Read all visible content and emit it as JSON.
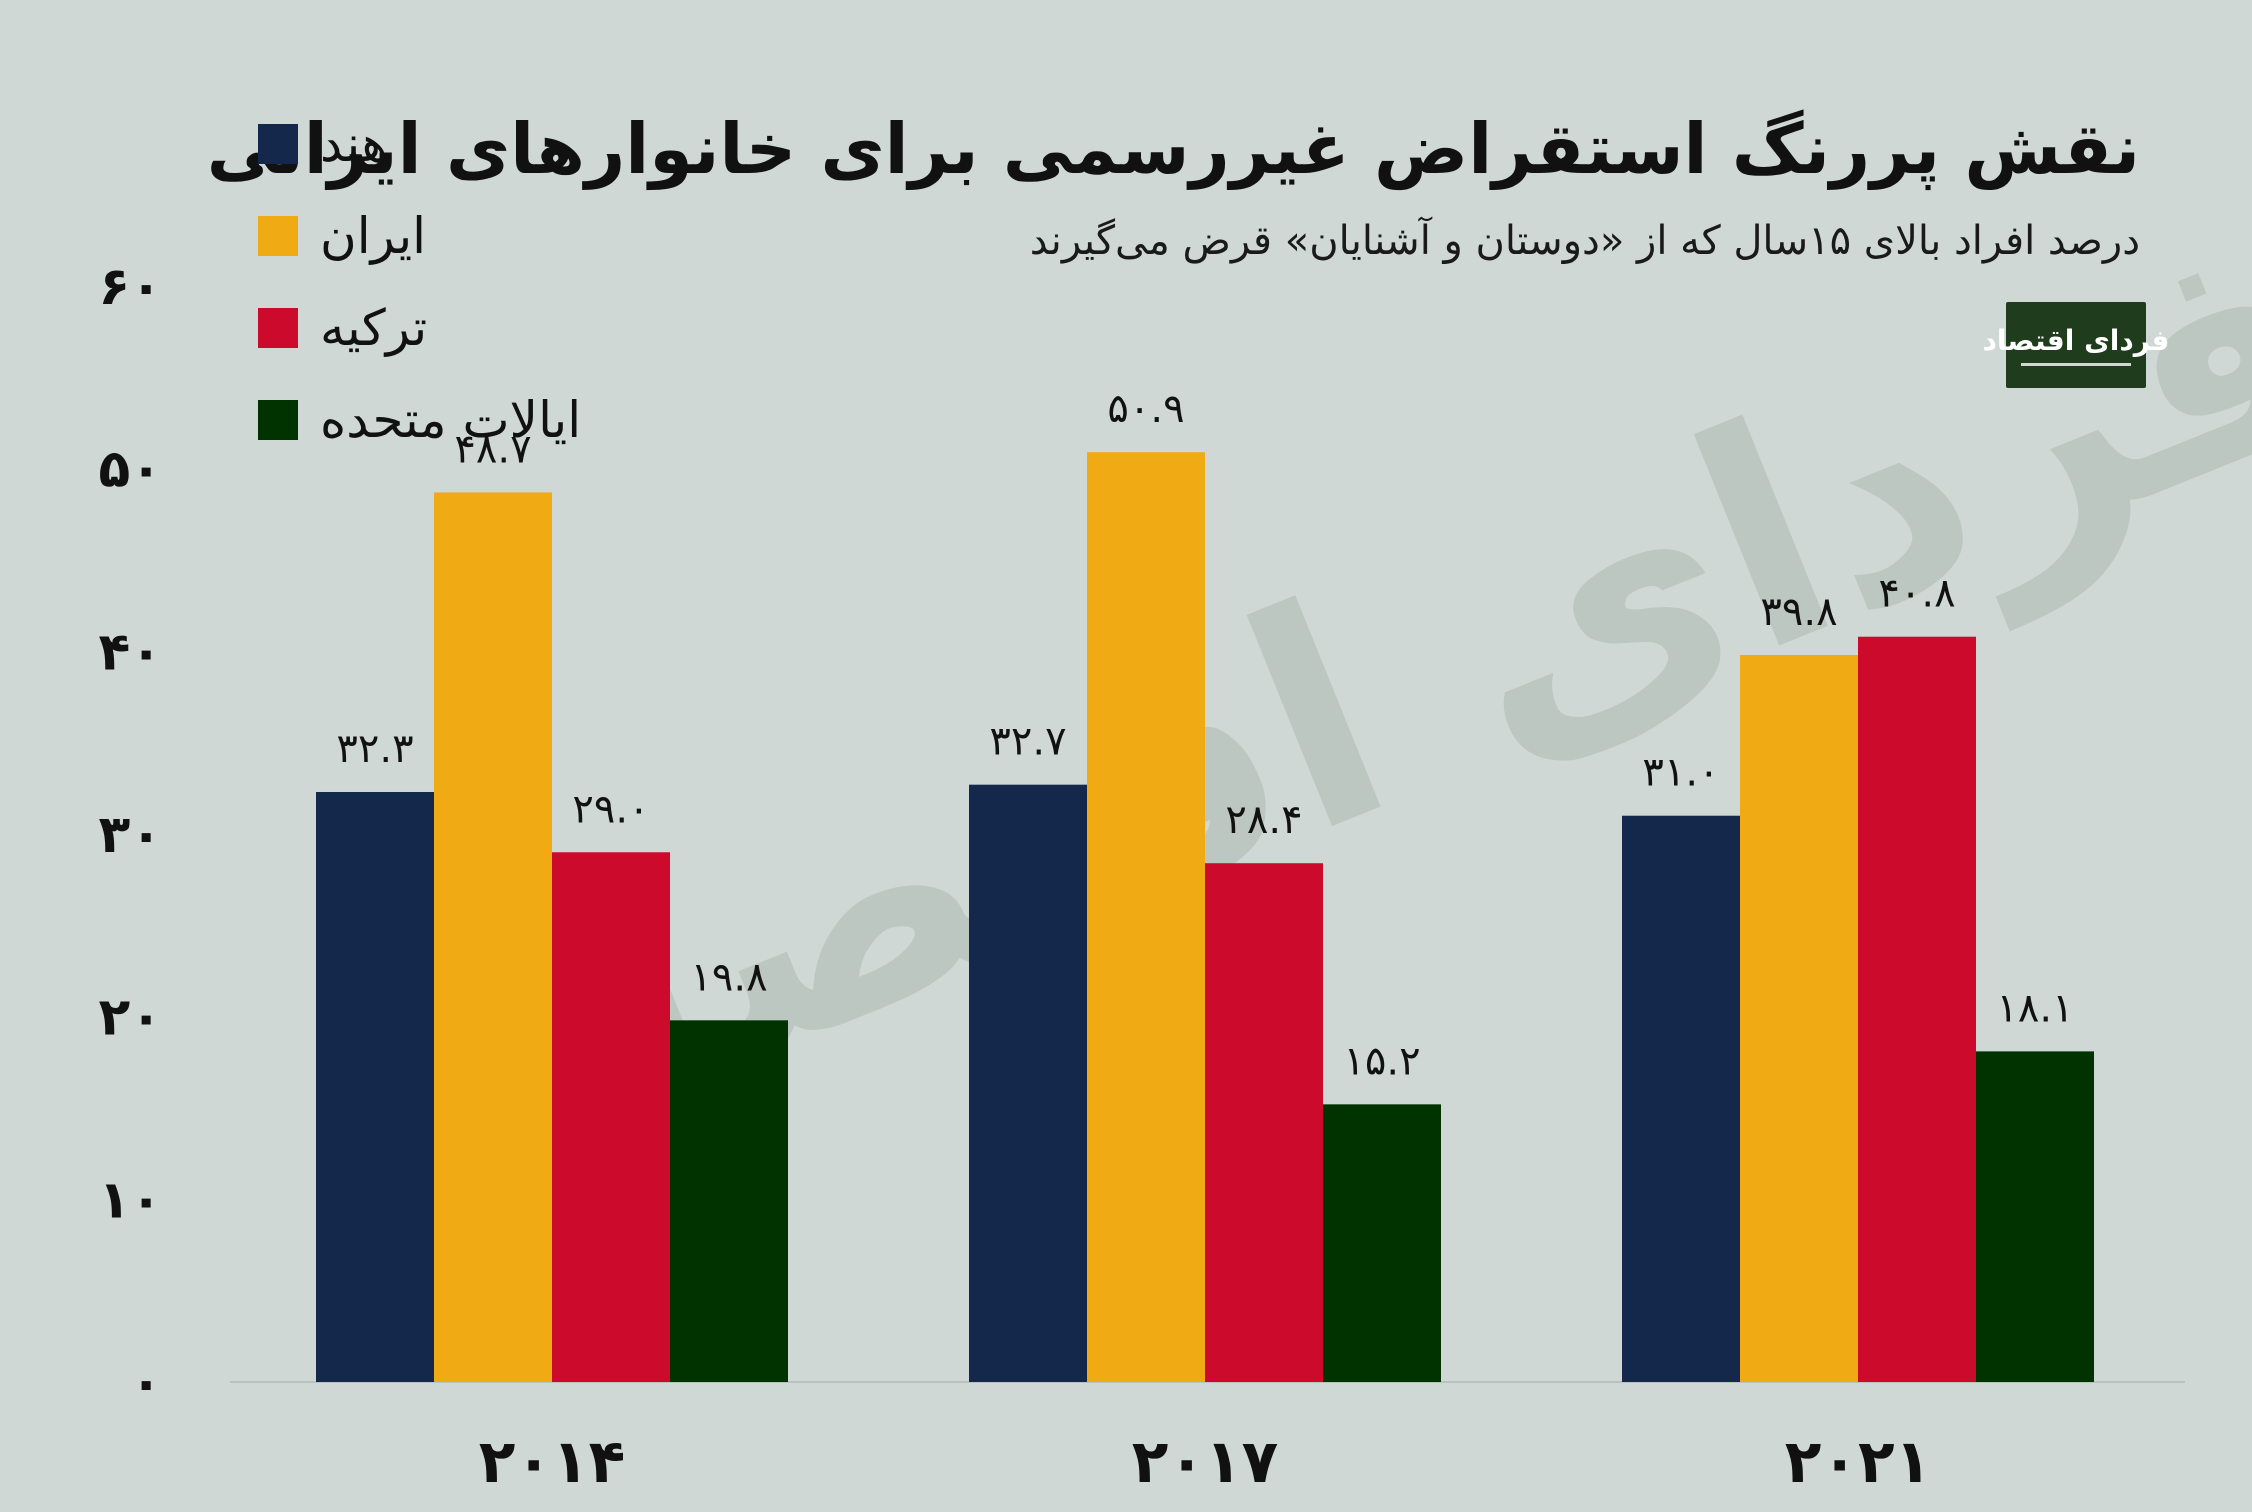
{
  "title": "نقش پررنگ استقراض غیررسمی برای خانوارهای ایرانی",
  "subtitle": "درصد افراد بالای ۱۵سال که از «دوستان و آشنایان» قرض می‌گیرند",
  "logo": {
    "text": "فردای اقتصاد"
  },
  "watermark": "فردای اقتصاد",
  "colors": {
    "background": "#cfd8d5",
    "india": "#13284a",
    "iran": "#f0aa14",
    "turkey": "#cc0a2c",
    "usa": "#003300"
  },
  "chart_data": {
    "type": "bar",
    "categories": [
      "۲۰۱۴",
      "۲۰۱۷",
      "۲۰۲۱"
    ],
    "series": [
      {
        "name": "هند",
        "color": "#13284a",
        "values": [
          32.3,
          32.7,
          31.0
        ],
        "labels": [
          "۳۲.۳",
          "۳۲.۷",
          "۳۱.۰"
        ]
      },
      {
        "name": "ایران",
        "color": "#f0aa14",
        "values": [
          48.7,
          50.9,
          39.8
        ],
        "labels": [
          "۴۸.۷",
          "۵۰.۹",
          "۳۹.۸"
        ]
      },
      {
        "name": "ترکیه",
        "color": "#cc0a2c",
        "values": [
          29.0,
          28.4,
          40.8
        ],
        "labels": [
          "۲۹.۰",
          "۲۸.۴",
          "۴۰.۸"
        ]
      },
      {
        "name": "ایالات متحده",
        "color": "#003300",
        "values": [
          19.8,
          15.2,
          18.1
        ],
        "labels": [
          "۱۹.۸",
          "۱۵.۲",
          "۱۸.۱"
        ]
      }
    ],
    "yticks": [
      0,
      10,
      20,
      30,
      40,
      50,
      60
    ],
    "ytick_labels": [
      "۰",
      "۱۰",
      "۲۰",
      "۳۰",
      "۴۰",
      "۵۰",
      "۶۰"
    ],
    "ylim": [
      0,
      60
    ],
    "grid": false,
    "legend_position": "top-left",
    "title": "نقش پررنگ استقراض غیررسمی برای خانوارهای ایرانی",
    "subtitle": "درصد افراد بالای ۱۵سال که از «دوستان و آشنایان» قرض می‌گیرند",
    "xlabel": "",
    "ylabel": ""
  }
}
